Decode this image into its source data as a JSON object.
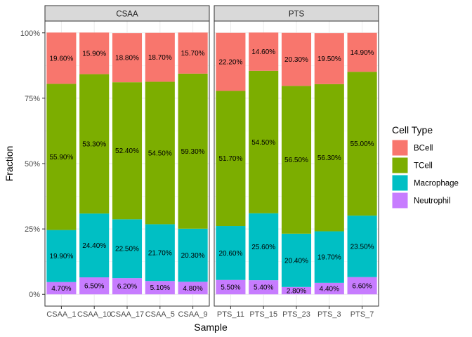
{
  "chart_data": {
    "type": "bar",
    "stacked": true,
    "xlabel": "Sample",
    "ylabel": "Fraction",
    "ylim": [
      0,
      1
    ],
    "y_ticks": [
      "0%",
      "25%",
      "50%",
      "75%",
      "100%"
    ],
    "legend_title": "Cell Type",
    "legend_position": "right",
    "grid": true,
    "facets": [
      {
        "label": "CSAA",
        "categories": [
          "CSAA_1",
          "CSAA_10",
          "CSAA_17",
          "CSAA_5",
          "CSAA_9"
        ]
      },
      {
        "label": "PTS",
        "categories": [
          "PTS_11",
          "PTS_15",
          "PTS_23",
          "PTS_3",
          "PTS_7"
        ]
      }
    ],
    "series": [
      {
        "name": "Neutrophil",
        "color": "#C77CFF",
        "values": [
          0.047,
          0.065,
          0.062,
          0.051,
          0.048,
          0.055,
          0.054,
          0.028,
          0.044,
          0.066
        ],
        "labels": [
          "4.70%",
          "6.50%",
          "6.20%",
          "5.10%",
          "4.80%",
          "5.50%",
          "5.40%",
          "2.80%",
          "4.40%",
          "6.60%"
        ]
      },
      {
        "name": "Macrophage",
        "color": "#00BFC4",
        "values": [
          0.199,
          0.244,
          0.225,
          0.217,
          0.203,
          0.206,
          0.256,
          0.204,
          0.197,
          0.235
        ],
        "labels": [
          "19.90%",
          "24.40%",
          "22.50%",
          "21.70%",
          "20.30%",
          "20.60%",
          "25.60%",
          "20.40%",
          "19.70%",
          "23.50%"
        ]
      },
      {
        "name": "TCell",
        "color": "#7CAE00",
        "values": [
          0.559,
          0.533,
          0.524,
          0.545,
          0.593,
          0.517,
          0.545,
          0.565,
          0.563,
          0.55
        ],
        "labels": [
          "55.90%",
          "53.30%",
          "52.40%",
          "54.50%",
          "59.30%",
          "51.70%",
          "54.50%",
          "56.50%",
          "56.30%",
          "55.00%"
        ]
      },
      {
        "name": "BCell",
        "color": "#F8766D",
        "values": [
          0.196,
          0.159,
          0.188,
          0.187,
          0.157,
          0.222,
          0.146,
          0.203,
          0.195,
          0.149
        ],
        "labels": [
          "19.60%",
          "15.90%",
          "18.80%",
          "18.70%",
          "15.70%",
          "22.20%",
          "14.60%",
          "20.30%",
          "19.50%",
          "14.90%"
        ]
      }
    ],
    "legend_order": [
      "BCell",
      "TCell",
      "Macrophage",
      "Neutrophil"
    ]
  }
}
